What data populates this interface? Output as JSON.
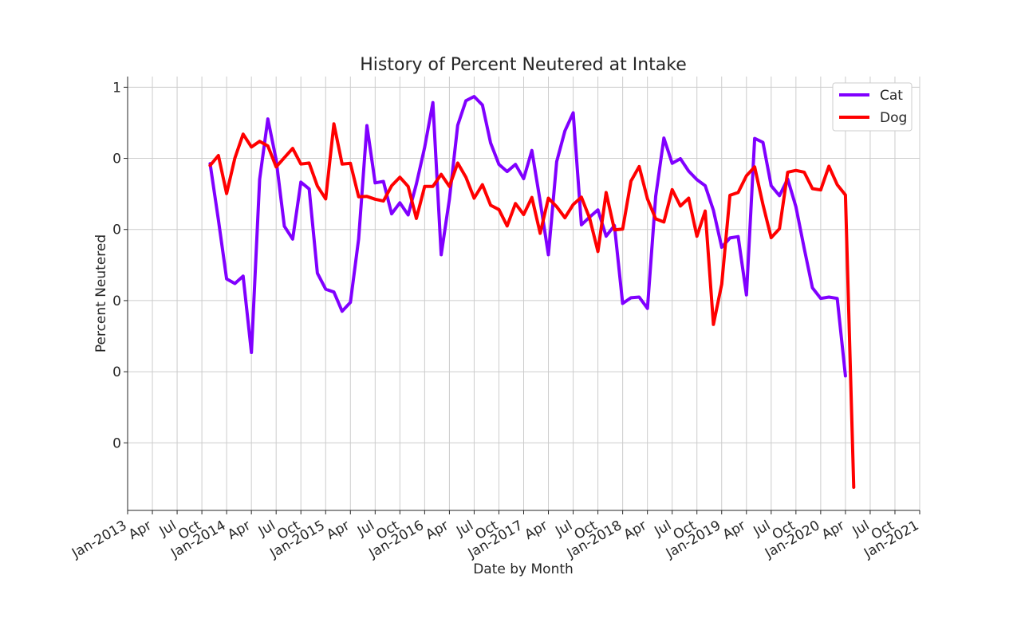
{
  "chart_data": {
    "type": "line",
    "title": "History of Percent Neutered at Intake",
    "xlabel": "Date by Month",
    "ylabel": "Percent Neutered",
    "x_ticks": [
      "Jan-2013",
      "Apr",
      "Jul",
      "Oct",
      "Jan-2014",
      "Apr",
      "Jul",
      "Oct",
      "Jan-2015",
      "Apr",
      "Jul",
      "Oct",
      "Jan-2016",
      "Apr",
      "Jul",
      "Oct",
      "Jan-2017",
      "Apr",
      "Jul",
      "Oct",
      "Jan-2018",
      "Apr",
      "Jul",
      "Oct",
      "Jan-2019",
      "Apr",
      "Jul",
      "Oct",
      "Jan-2020",
      "Apr",
      "Jul",
      "Oct",
      "Jan-2021"
    ],
    "y_ticks": [
      {
        "value": 1.0,
        "label": "1"
      },
      {
        "value": 0.8,
        "label": "0"
      },
      {
        "value": 0.6,
        "label": "0"
      },
      {
        "value": 0.4,
        "label": "0"
      },
      {
        "value": 0.2,
        "label": "0"
      },
      {
        "value": 0.0,
        "label": "0"
      }
    ],
    "xlim": [
      "2013-01",
      "2021-01"
    ],
    "ylim": [
      -0.19,
      1.03
    ],
    "grid": true,
    "legend_position": "top-right",
    "x": [
      "2013-11",
      "2013-12",
      "2014-01",
      "2014-02",
      "2014-03",
      "2014-04",
      "2014-05",
      "2014-06",
      "2014-07",
      "2014-08",
      "2014-09",
      "2014-10",
      "2014-11",
      "2014-12",
      "2015-01",
      "2015-02",
      "2015-03",
      "2015-04",
      "2015-05",
      "2015-06",
      "2015-07",
      "2015-08",
      "2015-09",
      "2015-10",
      "2015-11",
      "2015-12",
      "2016-01",
      "2016-02",
      "2016-03",
      "2016-04",
      "2016-05",
      "2016-06",
      "2016-07",
      "2016-08",
      "2016-09",
      "2016-10",
      "2016-11",
      "2016-12",
      "2017-01",
      "2017-02",
      "2017-03",
      "2017-04",
      "2017-05",
      "2017-06",
      "2017-07",
      "2017-08",
      "2017-09",
      "2017-10",
      "2017-11",
      "2017-12",
      "2018-01",
      "2018-02",
      "2018-03",
      "2018-04",
      "2018-05",
      "2018-06",
      "2018-07",
      "2018-08",
      "2018-09",
      "2018-10",
      "2018-11",
      "2018-12",
      "2019-01",
      "2019-02",
      "2019-03",
      "2019-04",
      "2019-05",
      "2019-06",
      "2019-07",
      "2019-08",
      "2019-09",
      "2019-10",
      "2019-11",
      "2019-12",
      "2020-01",
      "2020-02",
      "2020-03",
      "2020-04",
      "2020-05"
    ],
    "series": [
      {
        "name": "Cat",
        "color": "#8000ff",
        "values": [
          0.785,
          0.627,
          0.461,
          0.448,
          0.469,
          0.254,
          0.741,
          0.911,
          0.796,
          0.609,
          0.573,
          0.733,
          0.714,
          0.477,
          0.432,
          0.424,
          0.37,
          0.395,
          0.573,
          0.892,
          0.731,
          0.735,
          0.644,
          0.675,
          0.641,
          0.728,
          0.831,
          0.957,
          0.529,
          0.685,
          0.893,
          0.962,
          0.974,
          0.95,
          0.843,
          0.783,
          0.763,
          0.783,
          0.743,
          0.822,
          0.679,
          0.529,
          0.791,
          0.877,
          0.928,
          0.613,
          0.635,
          0.655,
          0.581,
          0.611,
          0.392,
          0.408,
          0.41,
          0.378,
          0.693,
          0.857,
          0.786,
          0.799,
          0.764,
          0.74,
          0.723,
          0.654,
          0.55,
          0.576,
          0.58,
          0.416,
          0.856,
          0.845,
          0.723,
          0.695,
          0.742,
          0.664,
          0.547,
          0.436,
          0.406,
          0.41,
          0.406,
          0.188,
          null
        ]
      },
      {
        "name": "Dog",
        "color": "#ff0000",
        "values": [
          0.78,
          0.808,
          0.701,
          0.801,
          0.868,
          0.832,
          0.848,
          0.835,
          0.776,
          0.802,
          0.828,
          0.784,
          0.787,
          0.722,
          0.686,
          0.897,
          0.784,
          0.786,
          0.692,
          0.693,
          0.685,
          0.68,
          0.723,
          0.747,
          0.721,
          0.631,
          0.721,
          0.721,
          0.755,
          0.721,
          0.787,
          0.747,
          0.688,
          0.726,
          0.668,
          0.656,
          0.61,
          0.673,
          0.642,
          0.69,
          0.589,
          0.688,
          0.664,
          0.633,
          0.67,
          0.691,
          0.631,
          0.538,
          0.704,
          0.599,
          0.601,
          0.736,
          0.777,
          0.686,
          0.63,
          0.621,
          0.712,
          0.666,
          0.688,
          0.581,
          0.652,
          0.333,
          0.446,
          0.696,
          0.704,
          0.751,
          0.776,
          0.67,
          0.577,
          0.602,
          0.761,
          0.766,
          0.761,
          0.715,
          0.711,
          0.778,
          0.726,
          0.697,
          -0.125
        ]
      }
    ]
  }
}
